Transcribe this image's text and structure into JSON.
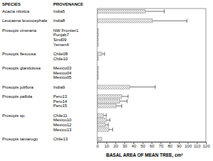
{
  "chart_data": {
    "type": "bar",
    "orientation": "horizontal",
    "group_title": "SPECIES",
    "ylabel": "PROVENANCE",
    "xlabel": "BASAL AREA OF MEAN TREE, cm²",
    "species": [
      "Acacia nilotica",
      "Leucaena leucocephala",
      "Prosopis cineraria",
      null,
      null,
      null,
      "Prosopis flexuosa",
      null,
      "Prosopis glandulosa",
      null,
      null,
      "Prosopis juliflora",
      "Prosopis pallida",
      null,
      null,
      "Prosopis sp.",
      null,
      null,
      null,
      "Prosopis tamarugo"
    ],
    "categories": [
      "India5",
      "India8",
      "NW Frontier1",
      "Punjab7",
      "Sind09",
      "Yemen4",
      "Chile08",
      "Chile10",
      "Mexico03",
      "Mexico04",
      "Mexico05",
      "India9",
      "Peru13",
      "Peru14",
      "Peru15",
      "Chile11",
      "Mexico10",
      "Mexico12",
      "Mexico13",
      "Chile13"
    ],
    "values": [
      53,
      61,
      1,
      1,
      1,
      1,
      5,
      1,
      1,
      1,
      1,
      36,
      27,
      25,
      21,
      7,
      10,
      9,
      13,
      5
    ],
    "errors": [
      21,
      38,
      null,
      null,
      null,
      null,
      3,
      null,
      null,
      null,
      null,
      28,
      7,
      8,
      6,
      3,
      4,
      3,
      4,
      null
    ],
    "color": "#888888",
    "xlim": [
      0,
      120
    ],
    "xticks": [
      0,
      10,
      20,
      30,
      40,
      50,
      60,
      70,
      80,
      90,
      100,
      110,
      120
    ],
    "grid": false
  }
}
